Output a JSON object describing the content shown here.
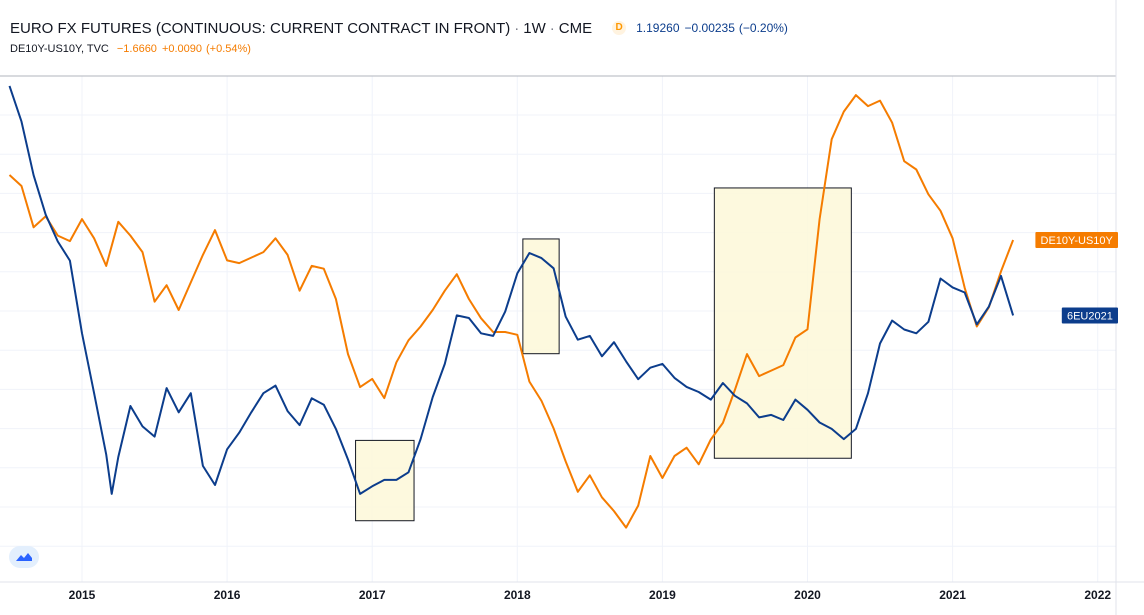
{
  "header": {
    "title": "EURO FX FUTURES (CONTINUOUS: CURRENT CONTRACT IN FRONT)",
    "interval": "1W",
    "exchange": "CME",
    "badge": "D",
    "price": "1.19260",
    "change": "−0.00235",
    "change_pct": "(−0.20%)",
    "series2_name": "DE10Y-US10Y, TVC",
    "series2_value": "−1.6660",
    "series2_change": "+0.0090",
    "series2_change_pct": "(+0.54%)"
  },
  "logo": "tradingview-logo-icon",
  "chart_data": {
    "type": "line",
    "x_ticks": [
      "2015",
      "2016",
      "2017",
      "2018",
      "2019",
      "2020",
      "2021",
      "2022"
    ],
    "grid": true,
    "colors": {
      "eur": "#0c3d8c",
      "spread": "#f57c00",
      "highlight": "#fdf8d8"
    },
    "series": [
      {
        "name": "6EU2021",
        "color": "#0c3d8c",
        "points": [
          [
            "2014-07",
            1.372
          ],
          [
            "2014-08",
            1.344
          ],
          [
            "2014-09",
            1.302
          ],
          [
            "2014-10",
            1.271
          ],
          [
            "2014-11",
            1.25
          ],
          [
            "2014-12",
            1.235
          ],
          [
            "2015-01",
            1.178
          ],
          [
            "2015-02",
            1.131
          ],
          [
            "2015-03",
            1.083
          ],
          [
            "2015-03-15",
            1.052
          ],
          [
            "2015-04",
            1.081
          ],
          [
            "2015-05",
            1.121
          ],
          [
            "2015-06",
            1.105
          ],
          [
            "2015-07",
            1.097
          ],
          [
            "2015-08",
            1.135
          ],
          [
            "2015-09",
            1.116
          ],
          [
            "2015-10",
            1.131
          ],
          [
            "2015-11",
            1.074
          ],
          [
            "2015-12",
            1.059
          ],
          [
            "2016-01",
            1.087
          ],
          [
            "2016-02",
            1.1
          ],
          [
            "2016-03",
            1.116
          ],
          [
            "2016-04",
            1.131
          ],
          [
            "2016-05",
            1.137
          ],
          [
            "2016-06",
            1.117
          ],
          [
            "2016-07",
            1.106
          ],
          [
            "2016-08",
            1.127
          ],
          [
            "2016-09",
            1.122
          ],
          [
            "2016-10",
            1.103
          ],
          [
            "2016-11",
            1.079
          ],
          [
            "2016-12",
            1.052
          ],
          [
            "2017-01",
            1.058
          ],
          [
            "2017-02",
            1.063
          ],
          [
            "2017-03",
            1.063
          ],
          [
            "2017-04",
            1.069
          ],
          [
            "2017-05",
            1.095
          ],
          [
            "2017-06",
            1.128
          ],
          [
            "2017-07",
            1.154
          ],
          [
            "2017-08",
            1.192
          ],
          [
            "2017-09",
            1.19
          ],
          [
            "2017-10",
            1.178
          ],
          [
            "2017-11",
            1.176
          ],
          [
            "2017-12",
            1.195
          ],
          [
            "2018-01",
            1.225
          ],
          [
            "2018-02",
            1.241
          ],
          [
            "2018-03",
            1.237
          ],
          [
            "2018-04",
            1.229
          ],
          [
            "2018-05",
            1.191
          ],
          [
            "2018-06",
            1.173
          ],
          [
            "2018-07",
            1.176
          ],
          [
            "2018-08",
            1.16
          ],
          [
            "2018-09",
            1.171
          ],
          [
            "2018-10",
            1.156
          ],
          [
            "2018-11",
            1.142
          ],
          [
            "2018-12",
            1.151
          ],
          [
            "2019-01",
            1.154
          ],
          [
            "2019-02",
            1.143
          ],
          [
            "2019-03",
            1.136
          ],
          [
            "2019-04",
            1.132
          ],
          [
            "2019-05",
            1.126
          ],
          [
            "2019-06",
            1.139
          ],
          [
            "2019-07",
            1.129
          ],
          [
            "2019-08",
            1.123
          ],
          [
            "2019-09",
            1.112
          ],
          [
            "2019-10",
            1.114
          ],
          [
            "2019-11",
            1.11
          ],
          [
            "2019-12",
            1.126
          ],
          [
            "2020-01",
            1.118
          ],
          [
            "2020-02",
            1.108
          ],
          [
            "2020-03",
            1.103
          ],
          [
            "2020-04",
            1.095
          ],
          [
            "2020-05",
            1.103
          ],
          [
            "2020-06",
            1.131
          ],
          [
            "2020-07",
            1.17
          ],
          [
            "2020-08",
            1.188
          ],
          [
            "2020-09",
            1.181
          ],
          [
            "2020-10",
            1.178
          ],
          [
            "2020-11",
            1.187
          ],
          [
            "2020-12",
            1.221
          ],
          [
            "2021-01",
            1.214
          ],
          [
            "2021-02",
            1.21
          ],
          [
            "2021-03",
            1.185
          ],
          [
            "2021-04",
            1.199
          ],
          [
            "2021-05",
            1.223
          ],
          [
            "2021-06",
            1.192
          ]
        ]
      },
      {
        "name": "DE10Y-US10Y",
        "color": "#f57c00",
        "points": [
          [
            "2014-07",
            -1.43
          ],
          [
            "2014-08",
            -1.47
          ],
          [
            "2014-09",
            -1.62
          ],
          [
            "2014-10",
            -1.58
          ],
          [
            "2014-11",
            -1.65
          ],
          [
            "2014-12",
            -1.67
          ],
          [
            "2015-01",
            -1.59
          ],
          [
            "2015-02",
            -1.66
          ],
          [
            "2015-03",
            -1.76
          ],
          [
            "2015-04",
            -1.6
          ],
          [
            "2015-05",
            -1.65
          ],
          [
            "2015-06",
            -1.71
          ],
          [
            "2015-07",
            -1.89
          ],
          [
            "2015-08",
            -1.83
          ],
          [
            "2015-09",
            -1.92
          ],
          [
            "2015-10",
            -1.82
          ],
          [
            "2015-11",
            -1.72
          ],
          [
            "2015-12",
            -1.63
          ],
          [
            "2016-01",
            -1.74
          ],
          [
            "2016-02",
            -1.75
          ],
          [
            "2016-03",
            -1.73
          ],
          [
            "2016-04",
            -1.71
          ],
          [
            "2016-05",
            -1.66
          ],
          [
            "2016-06",
            -1.72
          ],
          [
            "2016-07",
            -1.85
          ],
          [
            "2016-08",
            -1.76
          ],
          [
            "2016-09",
            -1.77
          ],
          [
            "2016-10",
            -1.88
          ],
          [
            "2016-11",
            -2.08
          ],
          [
            "2016-12",
            -2.2
          ],
          [
            "2017-01",
            -2.17
          ],
          [
            "2017-02",
            -2.24
          ],
          [
            "2017-03",
            -2.11
          ],
          [
            "2017-04",
            -2.03
          ],
          [
            "2017-05",
            -1.98
          ],
          [
            "2017-06",
            -1.92
          ],
          [
            "2017-07",
            -1.85
          ],
          [
            "2017-08",
            -1.79
          ],
          [
            "2017-09",
            -1.88
          ],
          [
            "2017-10",
            -1.95
          ],
          [
            "2017-11",
            -2.0
          ],
          [
            "2017-12",
            -2.0
          ],
          [
            "2018-01",
            -2.01
          ],
          [
            "2018-02",
            -2.18
          ],
          [
            "2018-03",
            -2.25
          ],
          [
            "2018-04",
            -2.35
          ],
          [
            "2018-05",
            -2.47
          ],
          [
            "2018-06",
            -2.58
          ],
          [
            "2018-07",
            -2.52
          ],
          [
            "2018-08",
            -2.6
          ],
          [
            "2018-09",
            -2.65
          ],
          [
            "2018-10",
            -2.71
          ],
          [
            "2018-11",
            -2.63
          ],
          [
            "2018-12",
            -2.45
          ],
          [
            "2019-01",
            -2.53
          ],
          [
            "2019-02",
            -2.45
          ],
          [
            "2019-03",
            -2.42
          ],
          [
            "2019-04",
            -2.48
          ],
          [
            "2019-05",
            -2.39
          ],
          [
            "2019-06",
            -2.33
          ],
          [
            "2019-07",
            -2.21
          ],
          [
            "2019-08",
            -2.08
          ],
          [
            "2019-09",
            -2.16
          ],
          [
            "2019-10",
            -2.14
          ],
          [
            "2019-11",
            -2.12
          ],
          [
            "2019-12",
            -2.02
          ],
          [
            "2020-01",
            -1.99
          ],
          [
            "2020-02",
            -1.59
          ],
          [
            "2020-03",
            -1.3
          ],
          [
            "2020-04",
            -1.2
          ],
          [
            "2020-05",
            -1.14
          ],
          [
            "2020-06",
            -1.18
          ],
          [
            "2020-07",
            -1.16
          ],
          [
            "2020-08",
            -1.24
          ],
          [
            "2020-09",
            -1.38
          ],
          [
            "2020-10",
            -1.41
          ],
          [
            "2020-11",
            -1.5
          ],
          [
            "2020-12",
            -1.56
          ],
          [
            "2021-01",
            -1.66
          ],
          [
            "2021-02",
            -1.84
          ],
          [
            "2021-03",
            -1.98
          ],
          [
            "2021-04",
            -1.91
          ],
          [
            "2021-05",
            -1.78
          ],
          [
            "2021-06",
            -1.666
          ]
        ]
      }
    ],
    "price_labels": [
      {
        "text": "DE10Y-US10Y",
        "series": "DE10Y-US10Y",
        "color": "#f57c00"
      },
      {
        "text": "6EU2021",
        "series": "6EU2021",
        "color": "#0c3d8c"
      }
    ],
    "highlight_boxes": [
      {
        "series": "6EU2021",
        "x_start": "2016-11-20",
        "x_end": "2017-04-15",
        "y_top": 1.094,
        "y_bottom": 1.031
      },
      {
        "series": "6EU2021",
        "x_start": "2018-01-15",
        "x_end": "2018-04-15",
        "y_top": 1.252,
        "y_bottom": 1.162
      },
      {
        "series": "6EU2021",
        "x_start": "2019-05-10",
        "x_end": "2020-04-20",
        "y_top": 1.292,
        "y_bottom": 1.08
      }
    ]
  }
}
